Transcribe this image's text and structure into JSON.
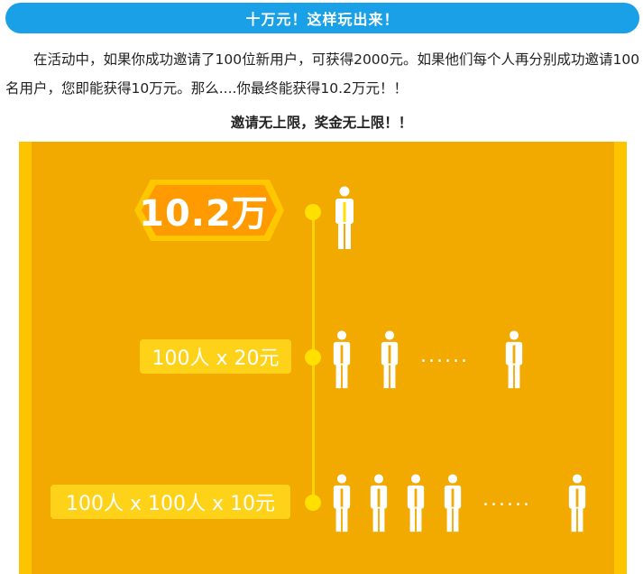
{
  "banner_title": "十万元！这样玩出来！",
  "paragraph": "在活动中，如果你成功邀请了100位新用户，可获得2000元。如果他们每个人再分别成功邀请100名用户，您即能获得10万元。那么....你最终能获得10.2万元！！",
  "subtitle": "邀请无上限，奖金无上限！！",
  "graphic": {
    "total_amount": "10.2万",
    "tier1_label": "100人 x 20元",
    "tier2_label": "100人 x 100人 x 10元",
    "ellipsis": "......",
    "colors": {
      "outer": "#ffc400",
      "inner": "#f2a900",
      "badge": "#ff9a00",
      "label": "#ffd21a",
      "figure": "#ffffff",
      "figure_top": "#ffe000"
    }
  }
}
